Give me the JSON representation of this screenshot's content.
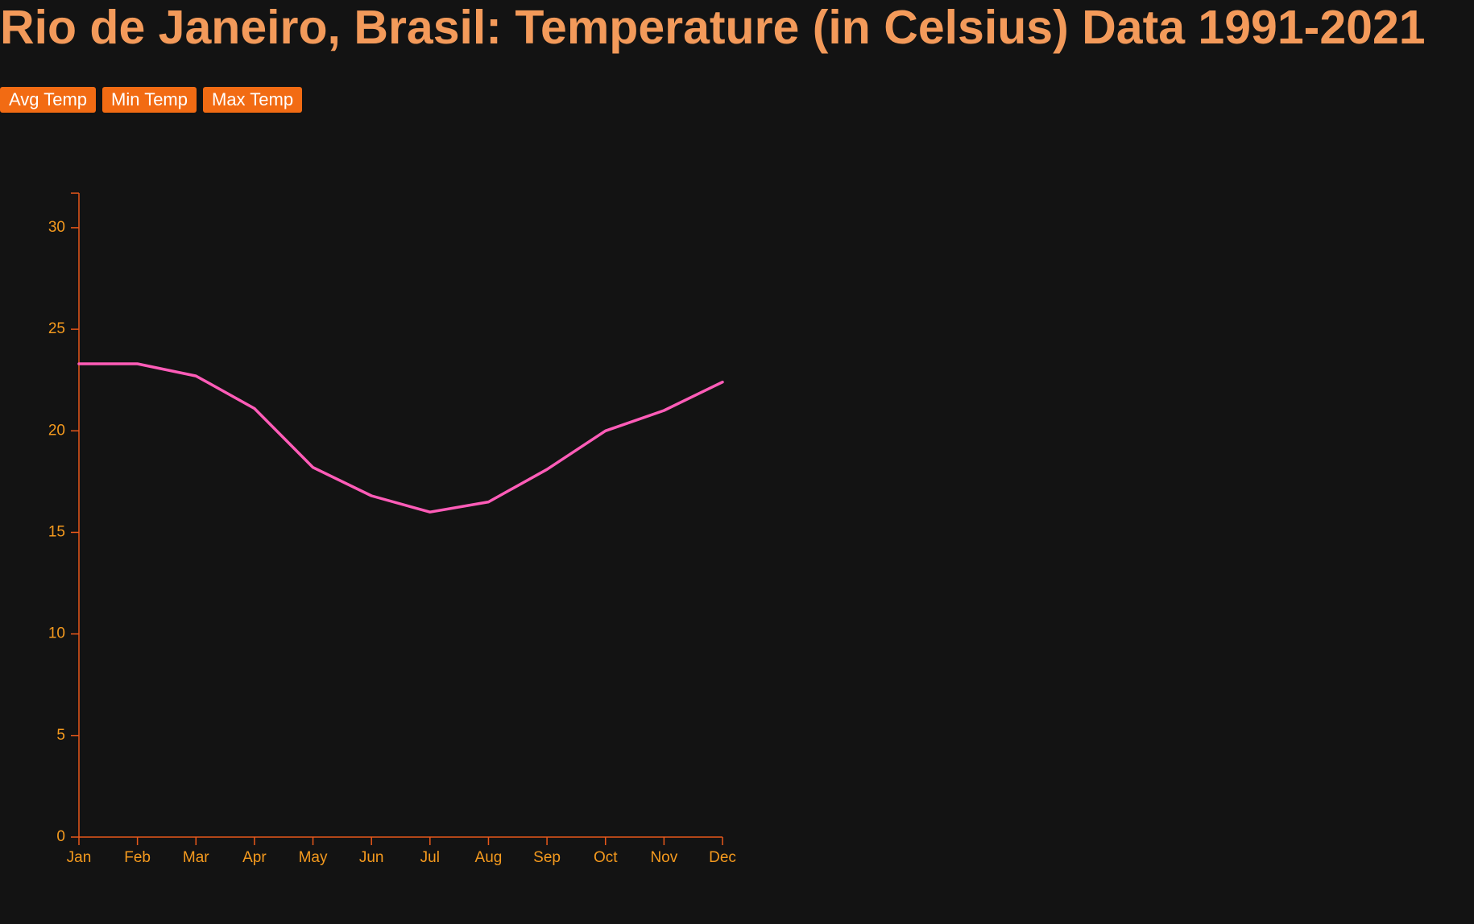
{
  "title": "Rio de Janeiro, Brasil: Temperature (in Celsius) Data 1991-2021",
  "buttons": {
    "avg": "Avg Temp",
    "min": "Min Temp",
    "max": "Max Temp"
  },
  "colors": {
    "background": "#131313",
    "title": "#f39a5a",
    "button": "#f26b13",
    "axis": "#e8581a",
    "tick_text": "#f59a1e",
    "line": "#ff5cb8"
  },
  "chart_data": {
    "type": "line",
    "title": "",
    "xlabel": "",
    "ylabel": "",
    "categories": [
      "Jan",
      "Feb",
      "Mar",
      "Apr",
      "May",
      "Jun",
      "Jul",
      "Aug",
      "Sep",
      "Oct",
      "Nov",
      "Dec"
    ],
    "series": [
      {
        "values": [
          23.3,
          23.3,
          22.7,
          21.1,
          18.2,
          16.8,
          16.0,
          16.5,
          18.1,
          20.0,
          21.0,
          22.4
        ]
      }
    ],
    "ylim": [
      0,
      31.7
    ],
    "yticks": [
      0,
      5,
      10,
      15,
      20,
      25,
      30
    ],
    "grid": false,
    "legend": "none"
  }
}
